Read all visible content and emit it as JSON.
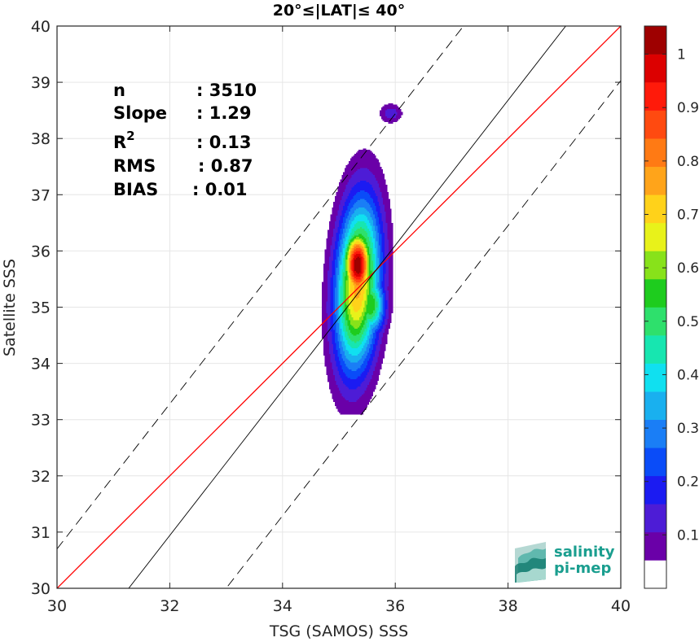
{
  "chart_data": {
    "type": "scatter",
    "title": "20°≤|LAT|≤ 40°",
    "xlabel": "TSG (SAMOS) SSS",
    "ylabel": "Satellite SSS",
    "xlim": [
      30,
      40
    ],
    "ylim": [
      30,
      40
    ],
    "xticks": [
      "30",
      "32",
      "34",
      "36",
      "38",
      "40"
    ],
    "yticks": [
      "30",
      "31",
      "32",
      "33",
      "34",
      "35",
      "36",
      "37",
      "38",
      "39",
      "40"
    ],
    "grid": true,
    "stats": [
      {
        "label": "n",
        "value": ": 3510"
      },
      {
        "label": "Slope",
        "value": ": 1.29"
      },
      {
        "label": "R",
        "sup": "2",
        "value": ": 0.13"
      },
      {
        "label": "RMS",
        "value": ": 0.87"
      },
      {
        "label": "BIAS",
        "value": ": 0.01"
      }
    ],
    "lines": [
      {
        "name": "identity",
        "color": "#ff0000",
        "style": "solid",
        "slope": 1.0,
        "intercept": 0.0
      },
      {
        "name": "regression",
        "color": "#000000",
        "style": "solid",
        "slope": 1.29,
        "intercept": -10.34
      },
      {
        "name": "upper-bound",
        "color": "#000000",
        "style": "dashed",
        "slope": 1.29,
        "intercept": -8.0
      },
      {
        "name": "lower-bound",
        "color": "#000000",
        "style": "dashed",
        "slope": 1.29,
        "intercept": -12.57
      }
    ],
    "density_contours": {
      "levels": [
        0.05,
        0.1,
        0.15,
        0.2,
        0.25,
        0.3,
        0.35,
        0.4,
        0.45,
        0.5,
        0.55,
        0.6,
        0.65,
        0.7,
        0.75,
        0.8,
        0.85,
        0.9,
        0.95
      ],
      "blobs": [
        {
          "cx": 35.38,
          "cy": 35.4,
          "rx": 0.55,
          "ry": 1.55
        },
        {
          "cx": 35.92,
          "cy": 38.45,
          "rx": 0.14,
          "ry": 0.12
        },
        {
          "cx": 35.32,
          "cy": 33.55,
          "rx": 0.16,
          "ry": 0.14
        },
        {
          "cx": 35.38,
          "cy": 37.0,
          "rx": 0.1,
          "ry": 0.08
        }
      ]
    },
    "colorbar": {
      "ticks": [
        "0.1",
        "0.2",
        "0.3",
        "0.4",
        "0.5",
        "0.6",
        "0.7",
        "0.8",
        "0.9",
        "1"
      ],
      "colors": [
        "#ffffff",
        "#6a00a8",
        "#4d1cd6",
        "#1b1bf2",
        "#0a4cf8",
        "#1a7ef6",
        "#19b0ef",
        "#10e0f0",
        "#17e6b0",
        "#2ee06c",
        "#1ecc1e",
        "#88e21a",
        "#e8f21a",
        "#ffd21a",
        "#ffa41a",
        "#ff7a14",
        "#ff4a10",
        "#ff1a0a",
        "#dc0000",
        "#9e0000"
      ]
    }
  },
  "logo": {
    "line1": "salinity",
    "line2": "pi-mep",
    "color": "#1a9e8f"
  }
}
